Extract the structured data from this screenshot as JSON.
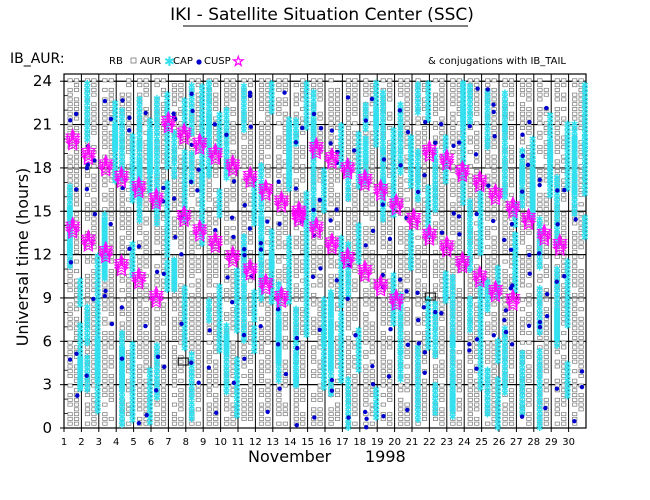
{
  "chart_data": {
    "type": "scatter",
    "title": "IKI - Satellite Situation Center (SSC)",
    "satellite_label": "IB_AUR:",
    "legend": {
      "rb": "RB",
      "aur": "AUR",
      "cap": "CAP",
      "cusp": "CUSP",
      "conjugations": "& conjugations with IB_TAIL"
    },
    "ylabel": "Universal time (hours)",
    "xlabel": "November",
    "year": "1998",
    "ylim": [
      0,
      24.5
    ],
    "xlim": [
      1,
      31
    ],
    "y_ticks": [
      0,
      3,
      6,
      9,
      12,
      15,
      18,
      21,
      24
    ],
    "x_ticks": [
      1,
      2,
      3,
      4,
      5,
      6,
      7,
      8,
      9,
      10,
      11,
      12,
      13,
      14,
      15,
      16,
      17,
      18,
      19,
      20,
      21,
      22,
      23,
      24,
      25,
      26,
      27,
      28,
      29,
      30
    ],
    "colors": {
      "rb": "#777777",
      "aur": "#555555",
      "cap": "#33e0f0",
      "cusp": "#0000cc",
      "conjugation": "#ff00ff"
    },
    "conjugations_upper": [
      [
        1.5,
        19.9
      ],
      [
        2.4,
        18.9
      ],
      [
        3.4,
        18.1
      ],
      [
        4.3,
        17.3
      ],
      [
        5.3,
        16.6
      ],
      [
        6.3,
        15.8
      ],
      [
        7.0,
        21.1
      ],
      [
        7.9,
        20.3
      ],
      [
        8.8,
        19.6
      ],
      [
        9.7,
        18.9
      ],
      [
        10.7,
        18.1
      ],
      [
        11.7,
        17.3
      ],
      [
        12.6,
        16.4
      ],
      [
        13.5,
        15.6
      ],
      [
        14.5,
        14.9
      ],
      [
        15.5,
        19.3
      ],
      [
        16.4,
        18.6
      ],
      [
        17.3,
        17.9
      ],
      [
        18.3,
        17.1
      ],
      [
        19.2,
        16.4
      ],
      [
        20.1,
        15.4
      ],
      [
        21.1,
        14.4
      ],
      [
        22.0,
        19.1
      ],
      [
        23.0,
        18.5
      ],
      [
        23.9,
        17.7
      ],
      [
        24.9,
        17.0
      ],
      [
        25.8,
        16.1
      ],
      [
        26.8,
        15.2
      ],
      [
        27.7,
        14.4
      ],
      [
        28.6,
        13.3
      ],
      [
        29.5,
        12.6
      ]
    ],
    "conjugations_lower": [
      [
        1.5,
        13.8
      ],
      [
        2.4,
        12.9
      ],
      [
        3.4,
        12.1
      ],
      [
        4.3,
        11.2
      ],
      [
        5.3,
        10.3
      ],
      [
        6.3,
        9.0
      ],
      [
        7.9,
        14.6
      ],
      [
        8.8,
        13.6
      ],
      [
        9.7,
        12.8
      ],
      [
        10.7,
        11.8
      ],
      [
        11.7,
        10.9
      ],
      [
        12.6,
        9.9
      ],
      [
        13.5,
        9.0
      ],
      [
        14.5,
        14.6
      ],
      [
        15.5,
        13.8
      ],
      [
        16.4,
        12.7
      ],
      [
        17.3,
        11.7
      ],
      [
        18.3,
        10.8
      ],
      [
        19.2,
        9.8
      ],
      [
        20.1,
        8.8
      ],
      [
        22.0,
        13.3
      ],
      [
        23.0,
        12.5
      ],
      [
        23.9,
        11.4
      ],
      [
        24.9,
        10.4
      ],
      [
        25.8,
        9.4
      ],
      [
        26.8,
        8.8
      ]
    ],
    "square_markers": [
      {
        "day": 7.85,
        "hour": 4.6
      },
      {
        "day": 22.05,
        "hour": 9.1
      }
    ]
  }
}
